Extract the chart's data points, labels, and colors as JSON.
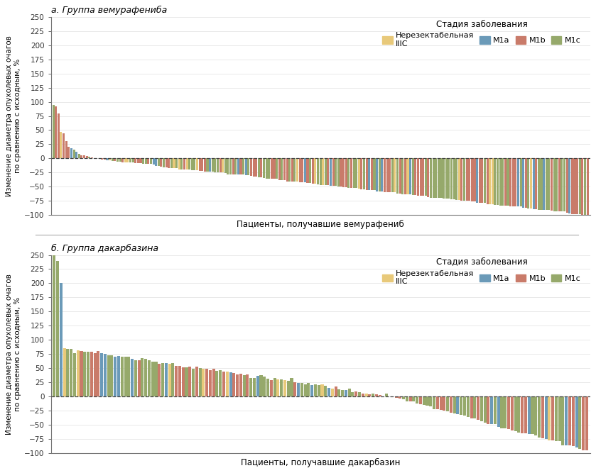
{
  "title_a": "а. Группа вемурафениба",
  "title_b": "б. Группа дакарбазина",
  "legend_title": "Стадия заболевания",
  "legend_labels": [
    "Нерезектабельная\nIIIC",
    "M1a",
    "M1b",
    "M1c"
  ],
  "colors": [
    "#E8C97A",
    "#6B9AB8",
    "#C97B6A",
    "#96A96B"
  ],
  "ylabel": "Изменение диаметра опухолевых очагов\nпо сравнению с исходным, %",
  "xlabel_a": "Пациенты, получавшие вемурафениб",
  "xlabel_b": "Пациенты, получавшие дакарбазин",
  "ylim": [
    -100,
    250
  ],
  "yticks": [
    -100,
    -75,
    -50,
    -25,
    0,
    25,
    50,
    75,
    100,
    125,
    150,
    175,
    200,
    225,
    250
  ],
  "n_a": 209,
  "n_b": 158,
  "background_color": "#ffffff",
  "dashed_line_color": "#444444",
  "bar_width": 0.85
}
